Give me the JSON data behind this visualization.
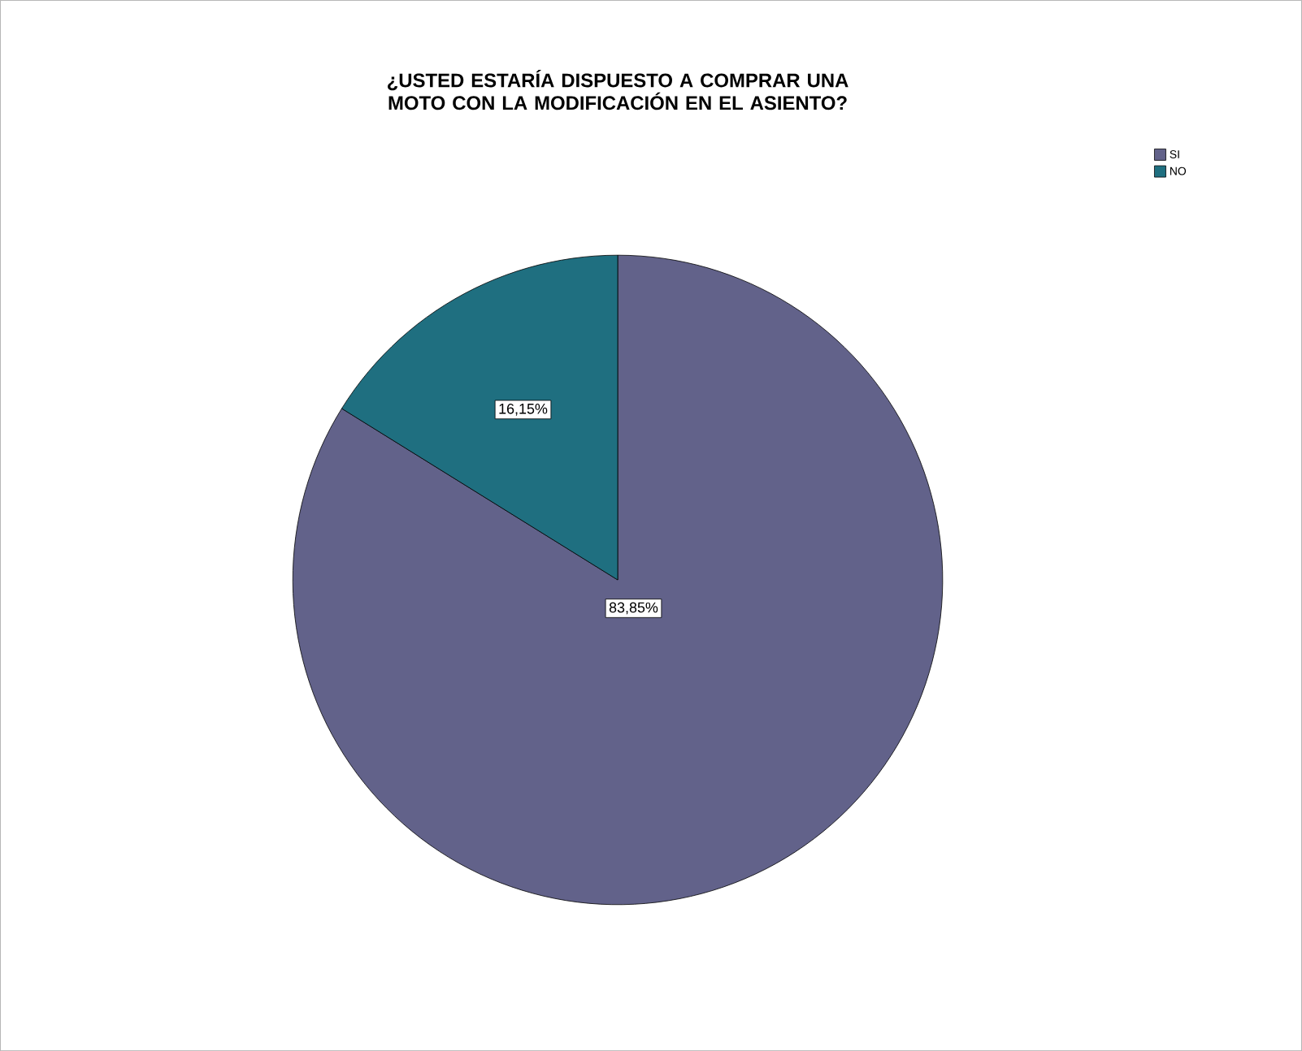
{
  "chart_data": {
    "type": "pie",
    "title": "¿USTED ESTARÍA DISPUESTO A COMPRAR UNA MOTO CON LA MODIFICACIÓN EN EL ASIENTO?",
    "categories": [
      "SI",
      "NO"
    ],
    "values": [
      83.85,
      16.15
    ],
    "colors": [
      "#62628a",
      "#1f6f80"
    ],
    "value_labels": [
      "83,85%",
      "16,15%"
    ],
    "legend": "top right"
  }
}
